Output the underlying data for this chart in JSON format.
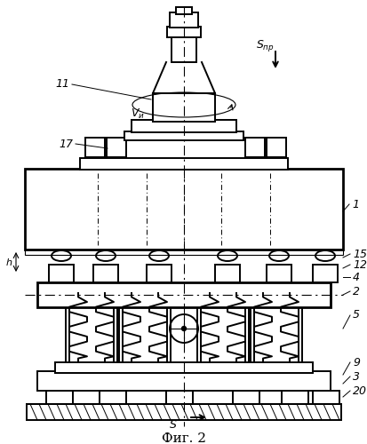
{
  "title": "Фиг. 2",
  "bg": "#ffffff",
  "lc": "#000000",
  "fig_width": 4.14,
  "fig_height": 5.0,
  "dpi": 100
}
